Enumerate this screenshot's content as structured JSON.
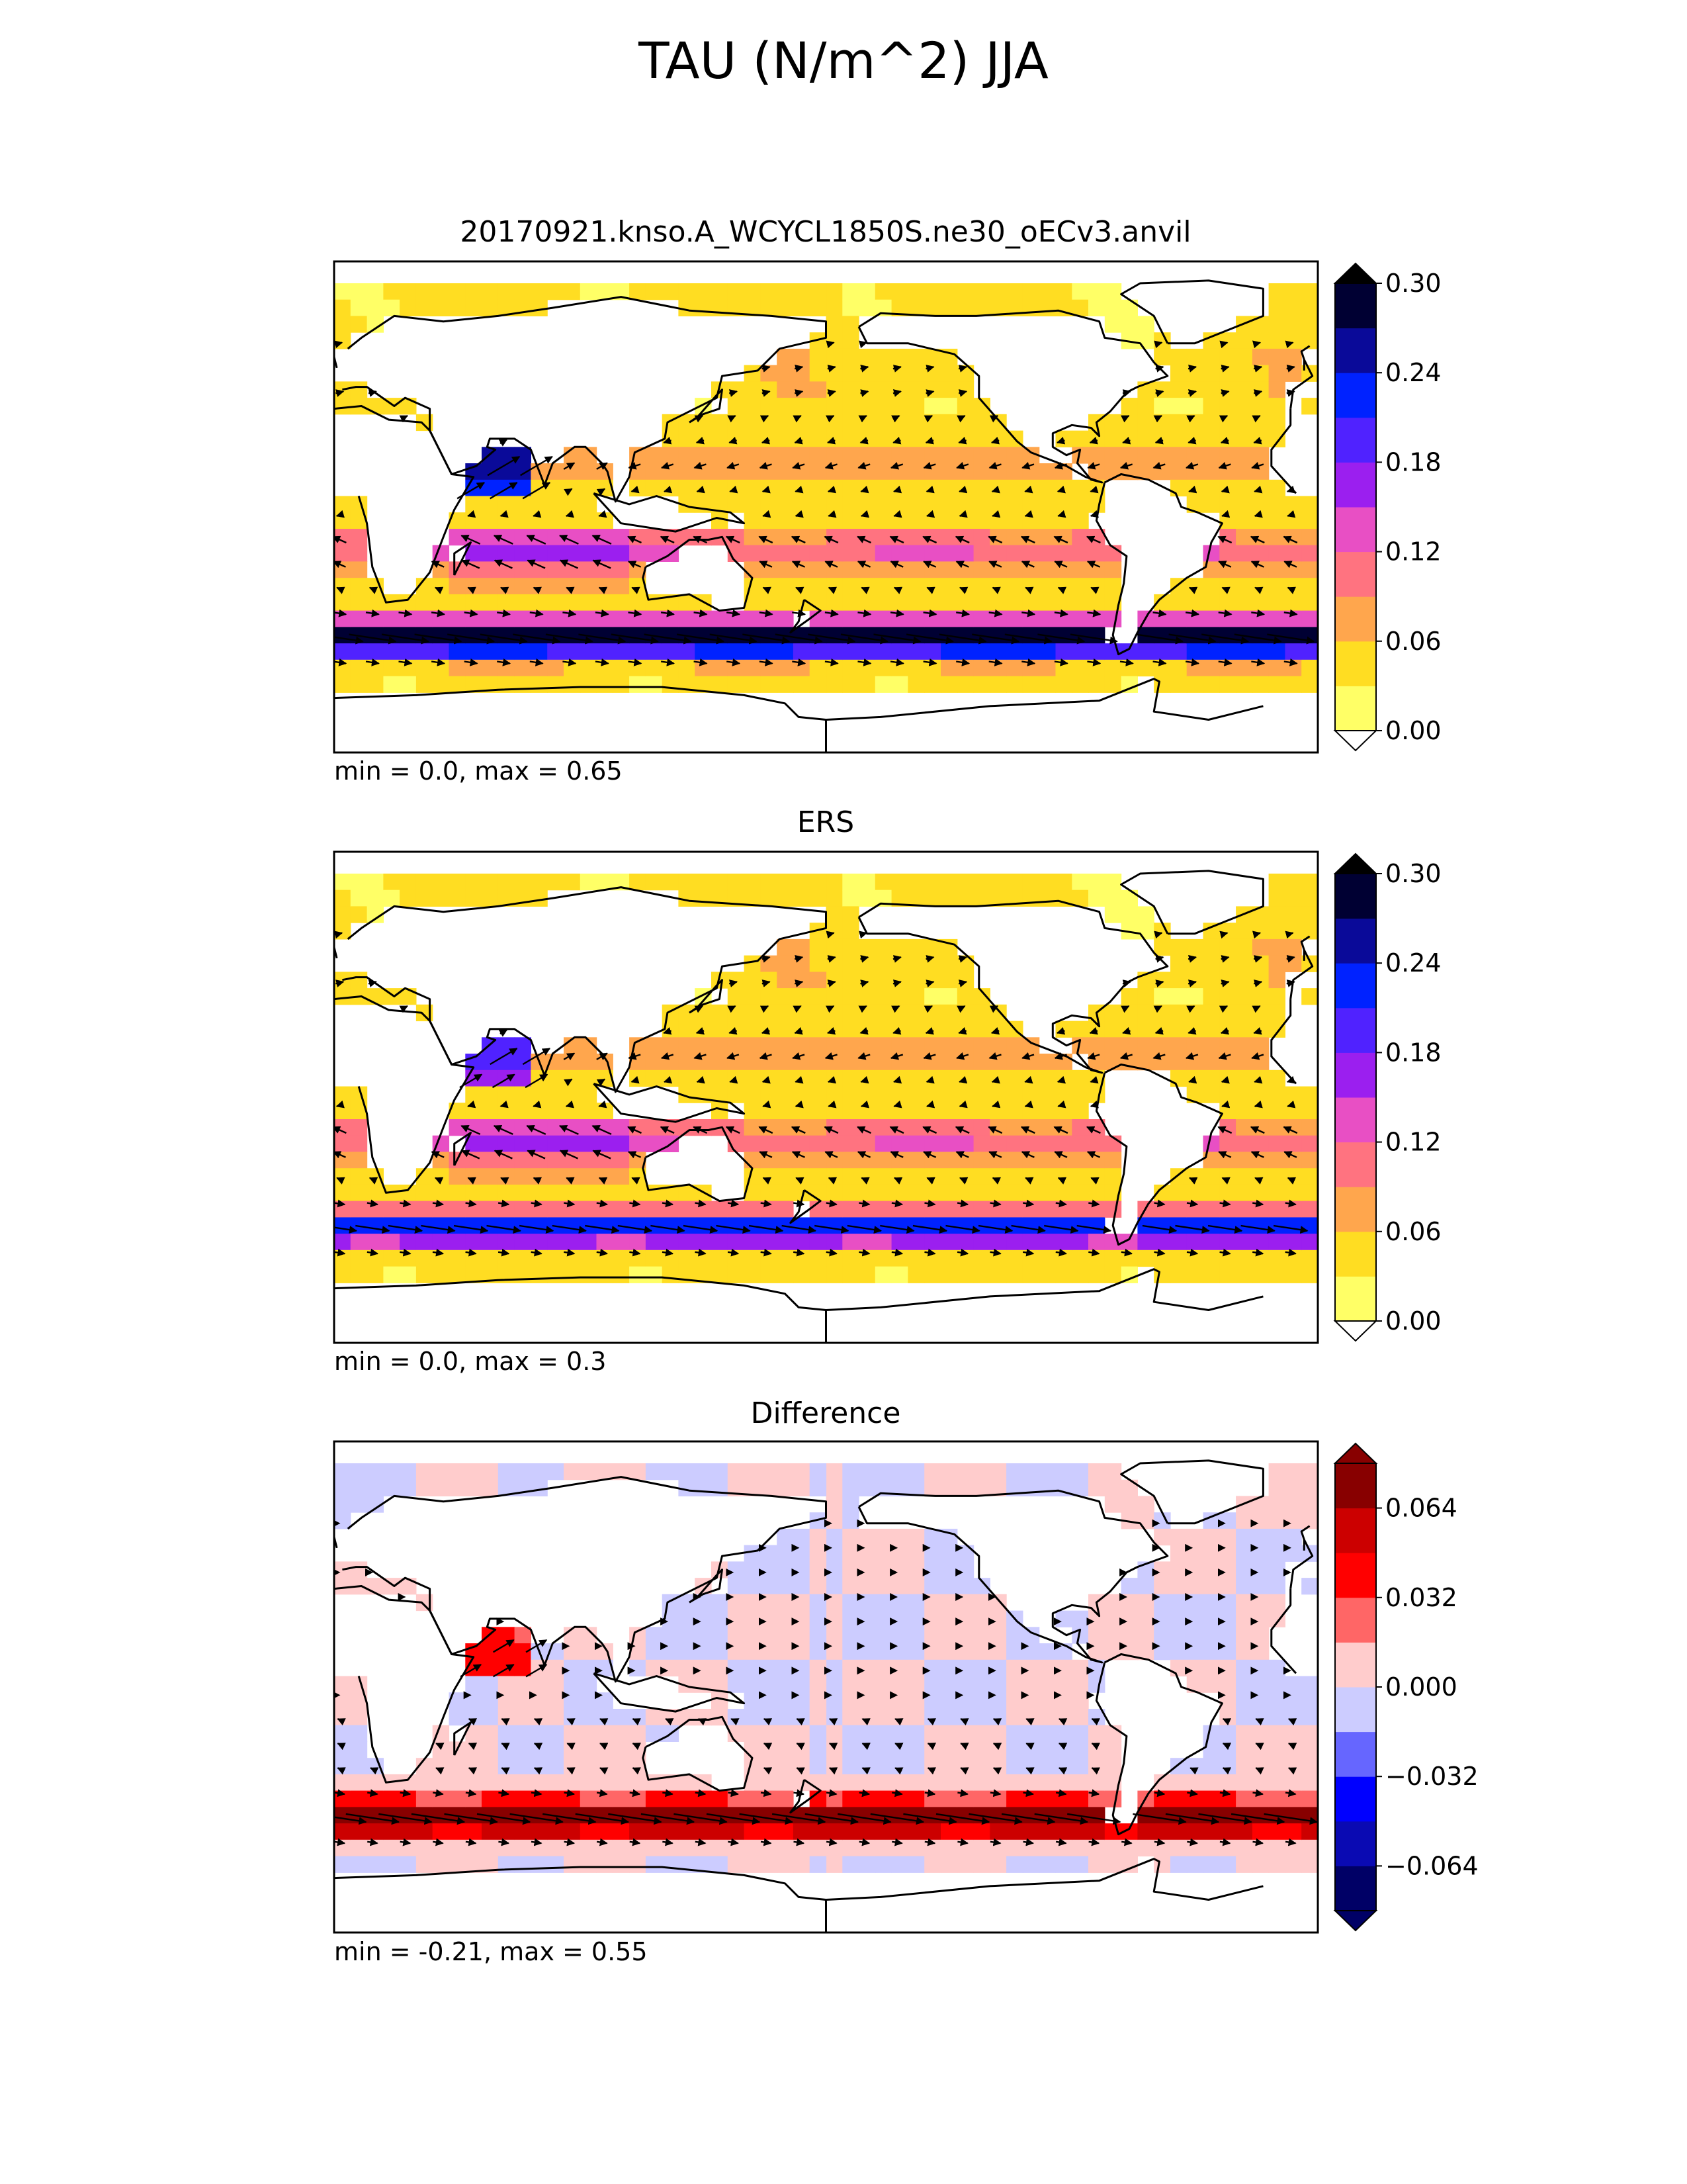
{
  "title": "TAU (N/m^2) JJA",
  "colors": {
    "seq": [
      "#ffff66",
      "#ffdd22",
      "#ffa64d",
      "#ff7380",
      "#e84fc4",
      "#9b1fef",
      "#5022ff",
      "#0022ff",
      "#0a0a99",
      "#000033"
    ],
    "div": [
      "#000066",
      "#0a0ab3",
      "#0000ff",
      "#6666ff",
      "#ccccff",
      "#ffcccc",
      "#ff6666",
      "#ff0000",
      "#cc0000",
      "#880000"
    ],
    "land": "#ffffff",
    "coast": "#000000"
  },
  "chart_data": [
    {
      "type": "contour-map",
      "title": "20170921.knso.A_WCYCL1850S.ne30_oECv3.anvil",
      "stats": "min = 0.0, max = 0.65",
      "colorbar": {
        "ticks": [
          "0.00",
          "0.06",
          "0.12",
          "0.18",
          "0.24",
          "0.30"
        ],
        "levels": [
          0,
          0.03,
          0.06,
          0.09,
          0.12,
          0.15,
          0.18,
          0.21,
          0.24,
          0.27,
          0.3
        ],
        "extend": "both"
      },
      "vectors": true
    },
    {
      "type": "contour-map",
      "title": "ERS",
      "stats": "min = 0.0, max = 0.3",
      "colorbar": {
        "ticks": [
          "0.00",
          "0.06",
          "0.12",
          "0.18",
          "0.24",
          "0.30"
        ],
        "levels": [
          0,
          0.03,
          0.06,
          0.09,
          0.12,
          0.15,
          0.18,
          0.21,
          0.24,
          0.27,
          0.3
        ],
        "extend": "both"
      },
      "vectors": true
    },
    {
      "type": "contour-map",
      "title": "Difference",
      "stats": "min = -0.21, max = 0.55",
      "colorbar": {
        "ticks": [
          "0.064",
          "0.032",
          "0.000",
          "−0.032",
          "−0.064"
        ],
        "levels": [
          -0.08,
          -0.064,
          -0.048,
          -0.032,
          -0.016,
          0,
          0.016,
          0.032,
          0.048,
          0.064,
          0.08
        ],
        "extend": "both"
      },
      "vectors": true
    }
  ]
}
